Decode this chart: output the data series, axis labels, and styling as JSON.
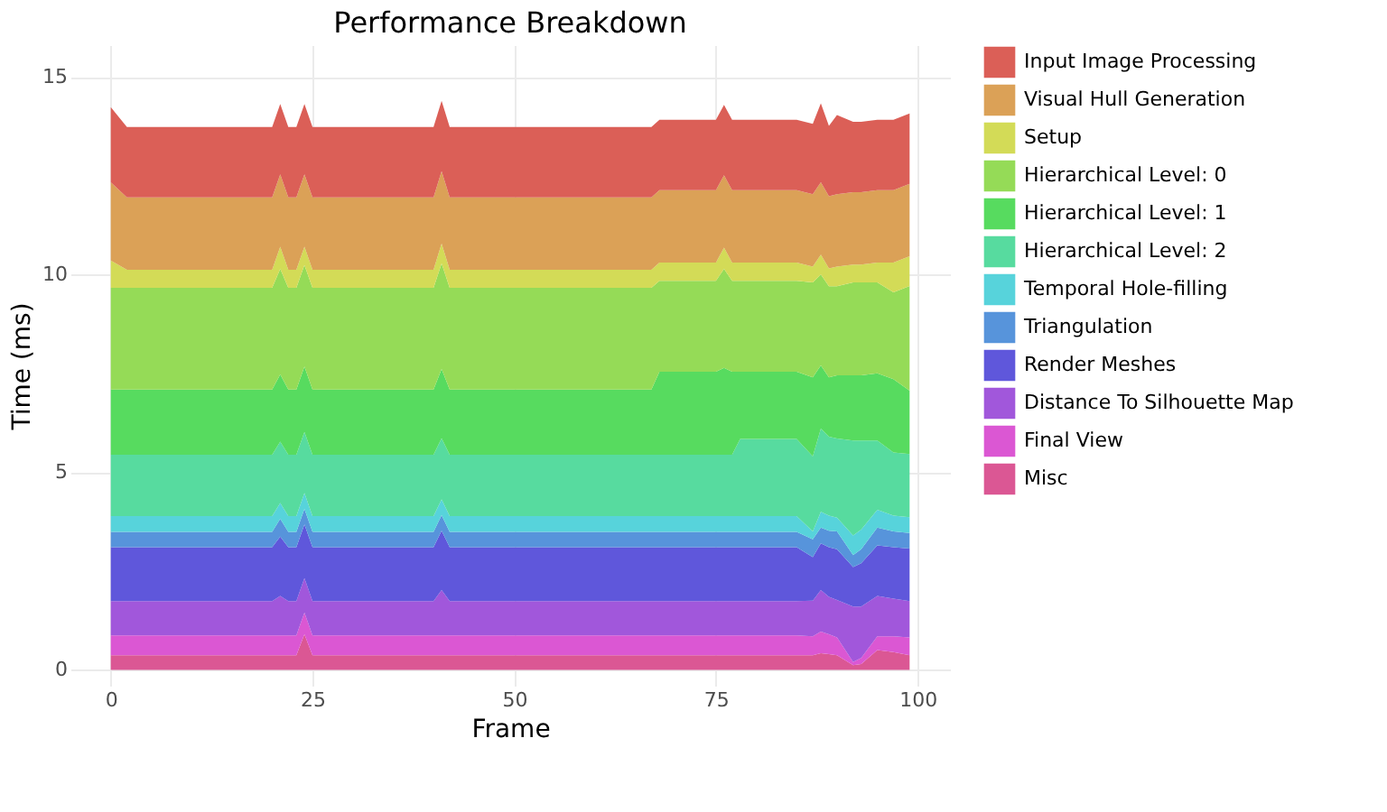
{
  "chart_data": {
    "type": "area",
    "title": "Performance Breakdown",
    "xlabel": "Frame",
    "ylabel": "Time (ms)",
    "stacked": true,
    "grid": true,
    "legend": "right",
    "xlim": [
      -5,
      104
    ],
    "xticks": [
      0,
      25,
      50,
      75,
      100
    ],
    "ylim": [
      -0.4,
      15.8
    ],
    "yticks": [
      0,
      5,
      10,
      15
    ],
    "x": [
      0,
      2,
      5,
      10,
      15,
      20,
      21,
      22,
      23,
      24,
      25,
      30,
      35,
      40,
      41,
      42,
      45,
      50,
      55,
      60,
      65,
      67,
      68,
      70,
      75,
      76,
      77,
      78,
      80,
      85,
      87,
      88,
      89,
      90,
      92,
      93,
      95,
      97,
      99
    ],
    "series": [
      {
        "name": "Misc",
        "color": "#db5794",
        "values": [
          0.37,
          0.37,
          0.37,
          0.37,
          0.37,
          0.37,
          0.37,
          0.37,
          0.37,
          0.9,
          0.37,
          0.37,
          0.37,
          0.37,
          0.37,
          0.37,
          0.37,
          0.37,
          0.37,
          0.37,
          0.37,
          0.37,
          0.37,
          0.37,
          0.37,
          0.37,
          0.37,
          0.37,
          0.37,
          0.37,
          0.37,
          0.42,
          0.4,
          0.37,
          0.12,
          0.15,
          0.5,
          0.45,
          0.37
        ]
      },
      {
        "name": "Final View",
        "color": "#db57d3",
        "values": [
          0.5,
          0.5,
          0.5,
          0.5,
          0.5,
          0.5,
          0.5,
          0.5,
          0.5,
          0.55,
          0.5,
          0.5,
          0.5,
          0.5,
          0.5,
          0.5,
          0.5,
          0.5,
          0.5,
          0.5,
          0.5,
          0.5,
          0.5,
          0.5,
          0.5,
          0.5,
          0.5,
          0.5,
          0.5,
          0.5,
          0.48,
          0.55,
          0.5,
          0.45,
          0.08,
          0.15,
          0.35,
          0.4,
          0.45
        ]
      },
      {
        "name": "Distance To Silhouette Map",
        "color": "#a157db",
        "values": [
          0.87,
          0.87,
          0.87,
          0.87,
          0.87,
          0.87,
          1.0,
          0.87,
          0.87,
          0.87,
          0.87,
          0.87,
          0.87,
          0.87,
          1.15,
          0.87,
          0.87,
          0.87,
          0.87,
          0.87,
          0.87,
          0.87,
          0.87,
          0.87,
          0.87,
          0.87,
          0.87,
          0.87,
          0.87,
          0.87,
          0.9,
          1.05,
          0.95,
          0.95,
          1.4,
          1.3,
          1.02,
          0.95,
          0.92
        ]
      },
      {
        "name": "Render Meshes",
        "color": "#5f57db",
        "values": [
          1.36,
          1.36,
          1.36,
          1.36,
          1.36,
          1.36,
          1.5,
          1.36,
          1.36,
          1.36,
          1.36,
          1.36,
          1.36,
          1.36,
          1.5,
          1.36,
          1.36,
          1.36,
          1.36,
          1.36,
          1.36,
          1.36,
          1.36,
          1.36,
          1.36,
          1.36,
          1.36,
          1.36,
          1.36,
          1.36,
          1.1,
          1.18,
          1.25,
          1.28,
          1.0,
          1.1,
          1.28,
          1.3,
          1.33
        ]
      },
      {
        "name": "Triangulation",
        "color": "#5794db",
        "values": [
          0.39,
          0.39,
          0.39,
          0.39,
          0.39,
          0.39,
          0.45,
          0.39,
          0.39,
          0.39,
          0.39,
          0.39,
          0.39,
          0.39,
          0.39,
          0.39,
          0.39,
          0.39,
          0.39,
          0.39,
          0.39,
          0.39,
          0.39,
          0.39,
          0.39,
          0.39,
          0.39,
          0.39,
          0.39,
          0.39,
          0.45,
          0.4,
          0.42,
          0.45,
          0.3,
          0.35,
          0.45,
          0.4,
          0.39
        ]
      },
      {
        "name": "Temporal Hole-filling",
        "color": "#57d3db",
        "values": [
          0.4,
          0.4,
          0.4,
          0.4,
          0.4,
          0.4,
          0.4,
          0.4,
          0.4,
          0.4,
          0.4,
          0.4,
          0.4,
          0.4,
          0.4,
          0.4,
          0.4,
          0.4,
          0.4,
          0.4,
          0.4,
          0.4,
          0.4,
          0.4,
          0.4,
          0.4,
          0.4,
          0.4,
          0.4,
          0.4,
          0.2,
          0.4,
          0.38,
          0.35,
          0.5,
          0.5,
          0.45,
          0.4,
          0.4
        ]
      },
      {
        "name": "Hierarchical Level: 2",
        "color": "#57db9f",
        "values": [
          1.55,
          1.55,
          1.55,
          1.55,
          1.55,
          1.55,
          1.55,
          1.55,
          1.55,
          1.55,
          1.55,
          1.55,
          1.55,
          1.55,
          1.55,
          1.55,
          1.55,
          1.55,
          1.55,
          1.55,
          1.55,
          1.55,
          1.55,
          1.55,
          1.55,
          1.55,
          1.55,
          1.95,
          1.95,
          1.95,
          1.9,
          2.1,
          2.0,
          2.0,
          2.4,
          2.25,
          1.75,
          1.6,
          1.6
        ]
      },
      {
        "name": "Hierarchical Level: 1",
        "color": "#57db5f",
        "values": [
          1.65,
          1.65,
          1.65,
          1.65,
          1.65,
          1.65,
          1.7,
          1.65,
          1.65,
          1.65,
          1.65,
          1.65,
          1.65,
          1.65,
          1.75,
          1.65,
          1.65,
          1.65,
          1.65,
          1.65,
          1.65,
          1.65,
          2.1,
          2.1,
          2.1,
          2.2,
          2.1,
          1.7,
          1.7,
          1.7,
          2.0,
          1.6,
          1.5,
          1.6,
          1.65,
          1.65,
          1.7,
          1.85,
          1.6
        ]
      },
      {
        "name": "Hierarchical Level: 0",
        "color": "#95db57",
        "values": [
          2.57,
          2.57,
          2.57,
          2.57,
          2.57,
          2.57,
          2.67,
          2.57,
          2.57,
          2.57,
          2.57,
          2.57,
          2.57,
          2.57,
          2.67,
          2.57,
          2.57,
          2.57,
          2.57,
          2.57,
          2.57,
          2.57,
          2.3,
          2.3,
          2.3,
          2.5,
          2.3,
          2.3,
          2.3,
          2.3,
          2.4,
          2.3,
          2.3,
          2.25,
          2.35,
          2.35,
          2.3,
          2.2,
          2.65
        ]
      },
      {
        "name": "Setup",
        "color": "#d3db57",
        "values": [
          0.69,
          0.46,
          0.46,
          0.46,
          0.46,
          0.46,
          0.56,
          0.46,
          0.46,
          0.46,
          0.46,
          0.46,
          0.46,
          0.46,
          0.5,
          0.46,
          0.46,
          0.46,
          0.46,
          0.46,
          0.46,
          0.46,
          0.46,
          0.46,
          0.46,
          0.54,
          0.46,
          0.46,
          0.46,
          0.46,
          0.4,
          0.5,
          0.45,
          0.5,
          0.45,
          0.45,
          0.5,
          0.75,
          0.75
        ]
      },
      {
        "name": "Visual Hull Generation",
        "color": "#dba157",
        "values": [
          1.98,
          1.83,
          1.83,
          1.83,
          1.83,
          1.83,
          1.83,
          1.83,
          1.83,
          1.83,
          1.83,
          1.83,
          1.83,
          1.83,
          1.83,
          1.83,
          1.83,
          1.83,
          1.83,
          1.83,
          1.83,
          1.83,
          1.83,
          1.83,
          1.83,
          1.83,
          1.83,
          1.83,
          1.83,
          1.83,
          1.83,
          1.83,
          1.83,
          1.83,
          1.83,
          1.83,
          1.83,
          1.83,
          1.83
        ]
      },
      {
        "name": "Input Image Processing",
        "color": "#db5f57",
        "values": [
          1.9,
          1.78,
          1.78,
          1.78,
          1.78,
          1.78,
          1.78,
          1.78,
          1.78,
          1.78,
          1.78,
          1.78,
          1.78,
          1.78,
          1.78,
          1.78,
          1.78,
          1.78,
          1.78,
          1.78,
          1.78,
          1.78,
          1.78,
          1.78,
          1.78,
          1.78,
          1.78,
          1.78,
          1.78,
          1.78,
          1.78,
          2.0,
          1.78,
          2.0,
          1.78,
          1.78,
          1.78,
          1.78,
          1.78
        ]
      }
    ]
  }
}
